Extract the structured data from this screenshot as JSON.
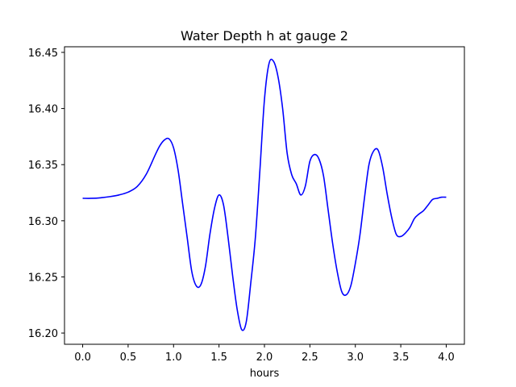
{
  "chart_data": {
    "type": "line",
    "title": "Water Depth h at gauge 2",
    "xlabel": "hours",
    "ylabel": "",
    "xlim": [
      -0.2,
      4.2
    ],
    "ylim": [
      16.19,
      16.455
    ],
    "xticks": [
      0.0,
      0.5,
      1.0,
      1.5,
      2.0,
      2.5,
      3.0,
      3.5,
      4.0
    ],
    "xtick_labels": [
      "0.0",
      "0.5",
      "1.0",
      "1.5",
      "2.0",
      "2.5",
      "3.0",
      "3.5",
      "4.0"
    ],
    "yticks": [
      16.2,
      16.25,
      16.3,
      16.35,
      16.4,
      16.45
    ],
    "ytick_labels": [
      "16.20",
      "16.25",
      "16.30",
      "16.35",
      "16.40",
      "16.45"
    ],
    "grid": false,
    "series": [
      {
        "color": "#0000ff",
        "x": [
          0.0,
          0.1,
          0.2,
          0.3,
          0.4,
          0.5,
          0.6,
          0.7,
          0.8,
          0.85,
          0.9,
          0.95,
          1.0,
          1.05,
          1.1,
          1.15,
          1.2,
          1.25,
          1.3,
          1.35,
          1.4,
          1.45,
          1.5,
          1.55,
          1.6,
          1.65,
          1.7,
          1.75,
          1.8,
          1.85,
          1.9,
          1.95,
          2.0,
          2.05,
          2.1,
          2.15,
          2.2,
          2.25,
          2.3,
          2.35,
          2.4,
          2.45,
          2.5,
          2.55,
          2.6,
          2.65,
          2.7,
          2.75,
          2.8,
          2.85,
          2.9,
          2.95,
          3.0,
          3.05,
          3.1,
          3.15,
          3.2,
          3.25,
          3.3,
          3.35,
          3.4,
          3.45,
          3.5,
          3.55,
          3.6,
          3.65,
          3.7,
          3.75,
          3.8,
          3.85,
          3.9,
          3.95,
          4.0
        ],
        "y": [
          16.32,
          16.32,
          16.3205,
          16.3215,
          16.323,
          16.3255,
          16.3305,
          16.3415,
          16.359,
          16.367,
          16.372,
          16.373,
          16.365,
          16.345,
          16.315,
          16.285,
          16.255,
          16.242,
          16.243,
          16.259,
          16.288,
          16.311,
          16.323,
          16.314,
          16.285,
          16.251,
          16.221,
          16.203,
          16.21,
          16.245,
          16.285,
          16.345,
          16.408,
          16.44,
          16.442,
          16.428,
          16.4,
          16.36,
          16.341,
          16.333,
          16.323,
          16.331,
          16.353,
          16.359,
          16.355,
          16.34,
          16.31,
          16.28,
          16.255,
          16.237,
          16.234,
          16.242,
          16.262,
          16.287,
          16.32,
          16.35,
          16.362,
          16.363,
          16.348,
          16.324,
          16.303,
          16.288,
          16.286,
          16.289,
          16.294,
          16.302,
          16.306,
          16.309,
          16.314,
          16.319,
          16.32,
          16.321,
          16.321
        ]
      }
    ]
  }
}
